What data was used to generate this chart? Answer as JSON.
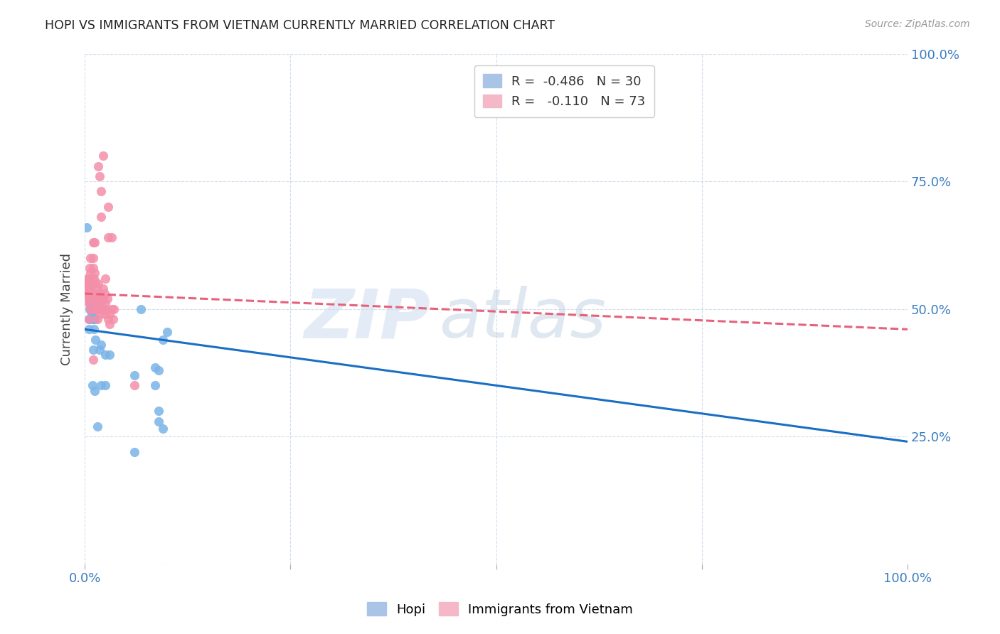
{
  "title": "HOPI VS IMMIGRANTS FROM VIETNAM CURRENTLY MARRIED CORRELATION CHART",
  "source": "Source: ZipAtlas.com",
  "ylabel": "Currently Married",
  "hopi_color": "#7ab4e8",
  "vietnam_color": "#f48faa",
  "hopi_line_color": "#1a6fc4",
  "vietnam_line_color": "#e8607a",
  "hopi_scatter": [
    [
      0.2,
      66.0
    ],
    [
      0.5,
      48.0
    ],
    [
      0.5,
      46.0
    ],
    [
      0.6,
      50.0
    ],
    [
      0.7,
      50.0
    ],
    [
      0.7,
      51.0
    ],
    [
      0.7,
      48.0
    ],
    [
      0.8,
      50.0
    ],
    [
      0.8,
      49.0
    ],
    [
      0.8,
      48.0
    ],
    [
      0.9,
      35.0
    ],
    [
      0.9,
      51.0
    ],
    [
      1.0,
      50.0
    ],
    [
      1.0,
      50.0
    ],
    [
      1.0,
      49.0
    ],
    [
      1.0,
      42.0
    ],
    [
      1.1,
      50.0
    ],
    [
      1.1,
      46.0
    ],
    [
      1.1,
      48.0
    ],
    [
      1.2,
      34.0
    ],
    [
      1.2,
      48.0
    ],
    [
      1.3,
      44.0
    ],
    [
      1.8,
      42.0
    ],
    [
      2.0,
      35.0
    ],
    [
      2.5,
      41.0
    ],
    [
      2.5,
      35.0
    ],
    [
      3.0,
      41.0
    ],
    [
      6.0,
      37.0
    ],
    [
      8.5,
      35.0
    ],
    [
      8.5,
      38.5
    ],
    [
      9.0,
      30.0
    ],
    [
      9.0,
      28.0
    ],
    [
      9.5,
      44.0
    ],
    [
      9.5,
      26.5
    ],
    [
      10.0,
      45.5
    ],
    [
      6.0,
      22.0
    ],
    [
      6.8,
      50.0
    ],
    [
      9.0,
      38.0
    ],
    [
      1.5,
      27.0
    ],
    [
      2.0,
      43.0
    ]
  ],
  "vietnam_scatter": [
    [
      0.2,
      55.0
    ],
    [
      0.3,
      56.0
    ],
    [
      0.3,
      55.0
    ],
    [
      0.4,
      54.0
    ],
    [
      0.4,
      53.0
    ],
    [
      0.4,
      52.0
    ],
    [
      0.5,
      56.0
    ],
    [
      0.5,
      54.0
    ],
    [
      0.5,
      54.0
    ],
    [
      0.5,
      53.0
    ],
    [
      0.5,
      51.0
    ],
    [
      0.5,
      48.0
    ],
    [
      0.6,
      58.0
    ],
    [
      0.6,
      56.0
    ],
    [
      0.6,
      55.0
    ],
    [
      0.6,
      54.0
    ],
    [
      0.6,
      52.0
    ],
    [
      0.7,
      60.0
    ],
    [
      0.7,
      57.0
    ],
    [
      0.7,
      55.0
    ],
    [
      0.7,
      54.0
    ],
    [
      0.7,
      50.0
    ],
    [
      0.8,
      55.0
    ],
    [
      0.8,
      53.0
    ],
    [
      0.8,
      52.0
    ],
    [
      0.9,
      56.0
    ],
    [
      0.9,
      53.0
    ],
    [
      1.0,
      63.0
    ],
    [
      1.0,
      60.0
    ],
    [
      1.0,
      58.0
    ],
    [
      1.0,
      52.0
    ],
    [
      1.0,
      40.0
    ],
    [
      1.1,
      56.0
    ],
    [
      1.1,
      52.0
    ],
    [
      1.1,
      50.0
    ],
    [
      1.2,
      52.0
    ],
    [
      1.2,
      63.0
    ],
    [
      1.3,
      55.0
    ],
    [
      1.3,
      50.0
    ],
    [
      1.4,
      52.0
    ],
    [
      1.4,
      51.0
    ],
    [
      1.5,
      54.0
    ],
    [
      1.5,
      50.0
    ],
    [
      1.5,
      48.0
    ],
    [
      1.6,
      55.0
    ],
    [
      1.6,
      53.0
    ],
    [
      1.7,
      51.0
    ],
    [
      1.8,
      52.0
    ],
    [
      1.8,
      50.0
    ],
    [
      1.9,
      49.0
    ],
    [
      2.0,
      52.0
    ],
    [
      2.0,
      51.0
    ],
    [
      2.1,
      50.0
    ],
    [
      2.2,
      54.0
    ],
    [
      2.2,
      52.0
    ],
    [
      2.3,
      50.0
    ],
    [
      2.4,
      53.0
    ],
    [
      2.5,
      56.0
    ],
    [
      2.5,
      51.0
    ],
    [
      2.6,
      50.0
    ],
    [
      2.7,
      52.0
    ],
    [
      2.8,
      64.0
    ],
    [
      2.8,
      48.0
    ],
    [
      3.0,
      49.0
    ],
    [
      3.0,
      47.0
    ],
    [
      3.3,
      50.0
    ],
    [
      3.4,
      48.0
    ],
    [
      3.5,
      50.0
    ],
    [
      1.6,
      78.0
    ],
    [
      2.0,
      73.0
    ],
    [
      2.0,
      68.0
    ],
    [
      2.8,
      70.0
    ],
    [
      3.3,
      64.0
    ],
    [
      1.2,
      57.0
    ],
    [
      6.0,
      35.0
    ],
    [
      1.8,
      76.0
    ],
    [
      2.2,
      80.0
    ],
    [
      2.5,
      49.0
    ]
  ],
  "xlim": [
    0.0,
    100.0
  ],
  "ylim": [
    0.0,
    100.0
  ],
  "xtick_positions": [
    0.0,
    25.0,
    50.0,
    75.0,
    100.0
  ],
  "xtick_labels": [
    "0.0%",
    "",
    "",
    "",
    "100.0%"
  ],
  "ytick_positions": [
    0.0,
    25.0,
    50.0,
    75.0,
    100.0
  ],
  "ytick_labels": [
    "",
    "25.0%",
    "50.0%",
    "75.0%",
    "100.0%"
  ],
  "hopi_line_x": [
    0.0,
    100.0
  ],
  "hopi_line_y": [
    46.0,
    24.0
  ],
  "vietnam_line_x": [
    0.0,
    100.0
  ],
  "vietnam_line_y": [
    53.0,
    46.0
  ]
}
